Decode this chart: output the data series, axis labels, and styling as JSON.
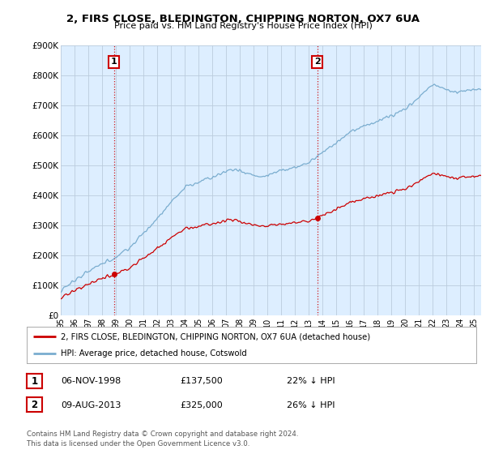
{
  "title": "2, FIRS CLOSE, BLEDINGTON, CHIPPING NORTON, OX7 6UA",
  "subtitle": "Price paid vs. HM Land Registry's House Price Index (HPI)",
  "legend_label_red": "2, FIRS CLOSE, BLEDINGTON, CHIPPING NORTON, OX7 6UA (detached house)",
  "legend_label_blue": "HPI: Average price, detached house, Cotswold",
  "footer": "Contains HM Land Registry data © Crown copyright and database right 2024.\nThis data is licensed under the Open Government Licence v3.0.",
  "annotation1_label": "1",
  "annotation1_date": "06-NOV-1998",
  "annotation1_price": "£137,500",
  "annotation1_hpi": "22% ↓ HPI",
  "annotation2_label": "2",
  "annotation2_date": "09-AUG-2013",
  "annotation2_price": "£325,000",
  "annotation2_hpi": "26% ↓ HPI",
  "ylim": [
    0,
    900000
  ],
  "yticks": [
    0,
    100000,
    200000,
    300000,
    400000,
    500000,
    600000,
    700000,
    800000,
    900000
  ],
  "ytick_labels": [
    "£0",
    "£100K",
    "£200K",
    "£300K",
    "£400K",
    "£500K",
    "£600K",
    "£700K",
    "£800K",
    "£900K"
  ],
  "color_red": "#cc0000",
  "color_blue": "#7aadcf",
  "color_annotation_box": "#cc0000",
  "background_plot": "#ddeeff",
  "background_fig": "#ffffff",
  "grid_color": "#bbccdd",
  "sale1_x": 1998.85,
  "sale1_y": 137500,
  "sale2_x": 2013.6,
  "sale2_y": 325000,
  "xmin": 1995.0,
  "xmax": 2025.5
}
